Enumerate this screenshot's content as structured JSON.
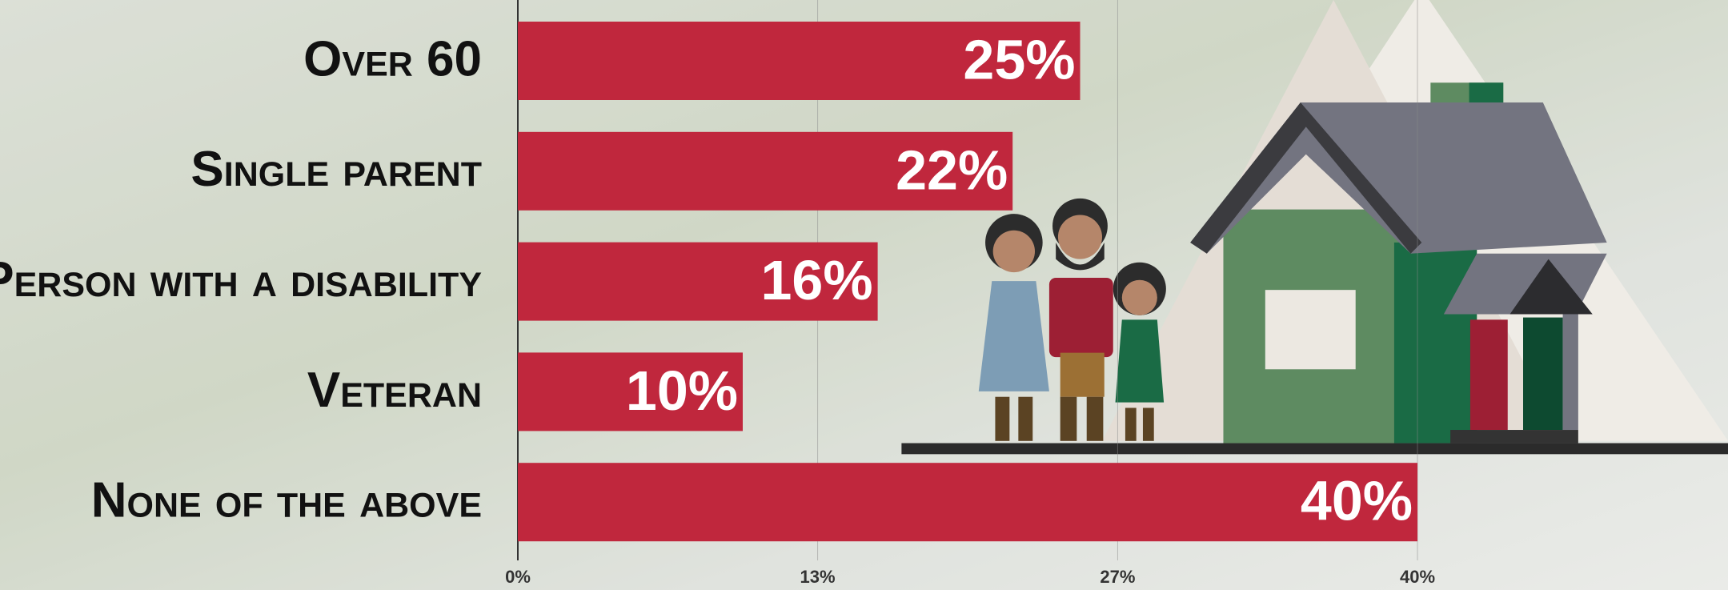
{
  "chart_data": {
    "type": "bar",
    "orientation": "horizontal",
    "categories": [
      "Over 60",
      "Single parent",
      "Person with a disability",
      "Veteran",
      "None of the above"
    ],
    "values": [
      25,
      22,
      16,
      10,
      40
    ],
    "value_labels": [
      "25%",
      "22%",
      "16%",
      "10%",
      "40%"
    ],
    "color": "#c0273d",
    "xlim": [
      0,
      40
    ],
    "xticks": [
      {
        "value": 0,
        "label": "0%"
      },
      {
        "value": 13.33,
        "label": "13%"
      },
      {
        "value": 26.67,
        "label": "27%"
      },
      {
        "value": 40,
        "label": "40%"
      }
    ],
    "grid": true
  }
}
